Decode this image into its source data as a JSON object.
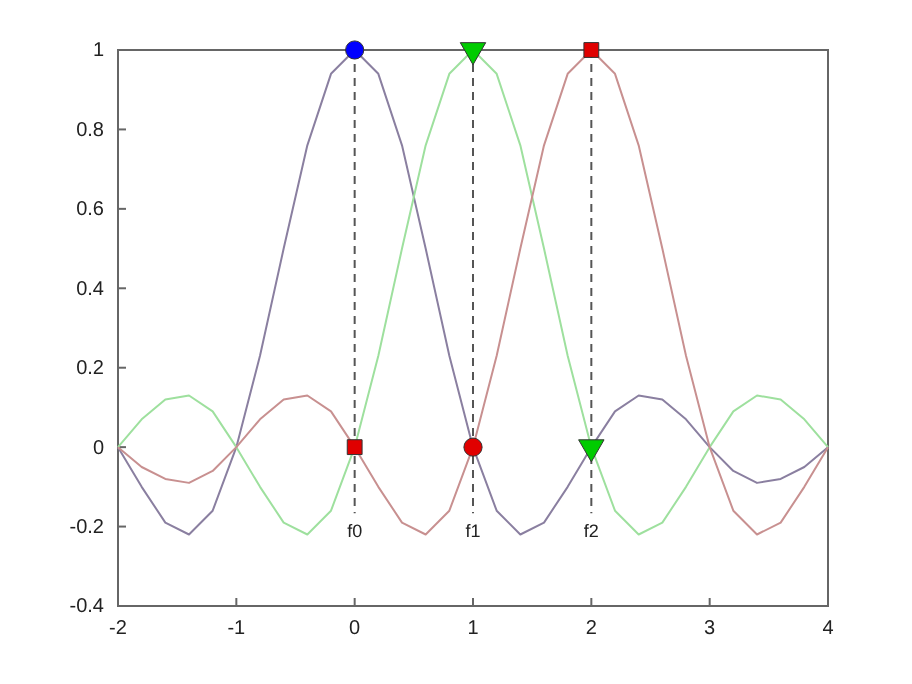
{
  "chart_data": {
    "type": "line",
    "xlim": [
      -2,
      4
    ],
    "ylim": [
      -0.4,
      1
    ],
    "xticks": [
      -2,
      -1,
      0,
      1,
      2,
      3,
      4
    ],
    "yticks": [
      -0.4,
      -0.2,
      0,
      0.2,
      0.4,
      0.6,
      0.8,
      1
    ],
    "grid": false,
    "x": [
      -2,
      -1.8,
      -1.6,
      -1.4,
      -1.2,
      -1,
      -0.8,
      -0.6,
      -0.4,
      -0.2,
      0,
      0.2,
      0.4,
      0.6,
      0.8,
      1,
      1.2,
      1.4,
      1.6,
      1.8,
      2,
      2.2,
      2.4,
      2.6,
      2.8,
      3,
      3.2,
      3.4,
      3.6,
      3.8,
      4
    ],
    "series": [
      {
        "color": "#8a7fa0",
        "marker": "none",
        "values": [
          0,
          -0.1,
          -0.19,
          -0.22,
          -0.16,
          0,
          0.23,
          0.5,
          0.76,
          0.94,
          1,
          0.94,
          0.76,
          0.5,
          0.23,
          0,
          -0.16,
          -0.22,
          -0.19,
          -0.1,
          0,
          0.09,
          0.13,
          0.12,
          0.07,
          0,
          -0.06,
          -0.09,
          -0.08,
          -0.05,
          0
        ]
      },
      {
        "color": "#9ee09e",
        "marker": "none",
        "values": [
          0,
          0.07,
          0.12,
          0.13,
          0.09,
          0,
          -0.1,
          -0.19,
          -0.22,
          -0.16,
          0,
          0.23,
          0.5,
          0.76,
          0.94,
          1,
          0.94,
          0.76,
          0.5,
          0.23,
          0,
          -0.16,
          -0.22,
          -0.19,
          -0.1,
          0,
          0.09,
          0.13,
          0.12,
          0.07,
          0
        ]
      },
      {
        "color": "#c89090",
        "marker": "none",
        "values": [
          0,
          -0.05,
          -0.08,
          -0.09,
          -0.06,
          0,
          0.07,
          0.12,
          0.13,
          0.09,
          0,
          -0.1,
          -0.19,
          -0.22,
          -0.16,
          0,
          0.23,
          0.5,
          0.76,
          0.94,
          1,
          0.94,
          0.76,
          0.5,
          0.23,
          0,
          -0.16,
          -0.22,
          -0.19,
          -0.1,
          0
        ]
      },
      {
        "type": "scatter",
        "color": "#0000ff",
        "marker": "circle",
        "x": [
          0
        ],
        "values": [
          1
        ]
      },
      {
        "type": "scatter",
        "color": "#00cc00",
        "marker": "triangle",
        "x": [
          1,
          2
        ],
        "values": [
          1,
          0
        ]
      },
      {
        "type": "scatter",
        "color": "#e00000",
        "marker": "square",
        "x": [
          2,
          0
        ],
        "values": [
          1,
          0
        ]
      },
      {
        "type": "scatter",
        "color": "#e00000",
        "marker": "circle",
        "x": [
          1
        ],
        "values": [
          0
        ]
      }
    ],
    "ref_lines": [
      {
        "axis": "x",
        "value": 0,
        "label": "f0",
        "color": "#555555",
        "line_style": "dashed"
      },
      {
        "axis": "x",
        "value": 1,
        "label": "f1",
        "color": "#555555",
        "line_style": "dashed"
      },
      {
        "axis": "x",
        "value": 2,
        "label": "f2",
        "color": "#555555",
        "line_style": "dashed"
      }
    ]
  }
}
